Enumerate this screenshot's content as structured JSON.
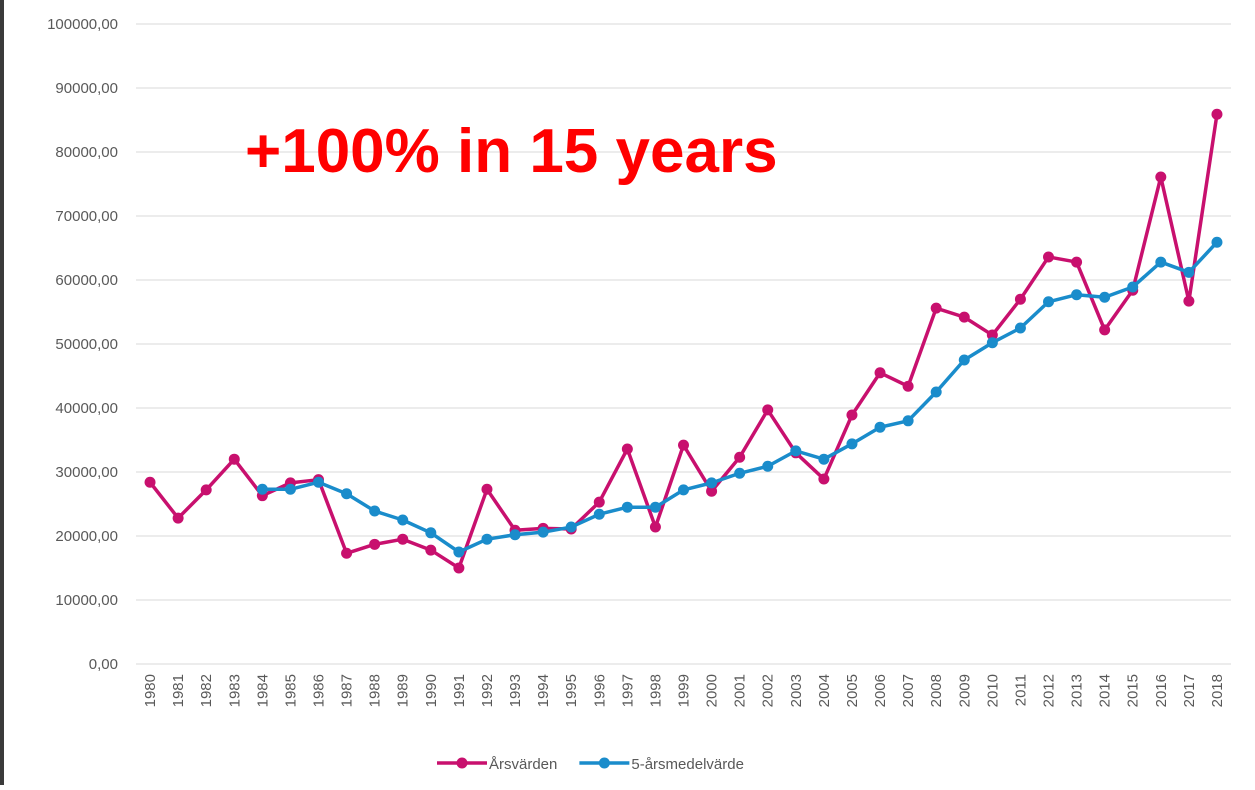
{
  "chart_data": {
    "type": "line",
    "annotation": "+100% in 15 years",
    "categories": [
      "1980",
      "1981",
      "1982",
      "1983",
      "1984",
      "1985",
      "1986",
      "1987",
      "1988",
      "1989",
      "1990",
      "1991",
      "1992",
      "1993",
      "1994",
      "1995",
      "1996",
      "1997",
      "1998",
      "1999",
      "2000",
      "2001",
      "2002",
      "2003",
      "2004",
      "2005",
      "2006",
      "2007",
      "2008",
      "2009",
      "2010",
      "2011",
      "2012",
      "2013",
      "2014",
      "2015",
      "2016",
      "2017",
      "2018"
    ],
    "series": [
      {
        "name": "Årsvärden",
        "color": "#c8106e",
        "values": [
          28400,
          22800,
          27200,
          32000,
          26300,
          28300,
          28800,
          17300,
          18700,
          19500,
          17800,
          15000,
          27300,
          20900,
          21200,
          21100,
          25300,
          33600,
          21400,
          34200,
          27000,
          32300,
          39700,
          33000,
          28900,
          38900,
          45500,
          43400,
          55600,
          54200,
          51400,
          57000,
          63600,
          62800,
          52200,
          58400,
          76100,
          56700,
          85900
        ]
      },
      {
        "name": "5-årsmedelvärde",
        "color": "#1a8ccb",
        "values": [
          null,
          null,
          null,
          null,
          27300,
          27300,
          28400,
          26600,
          23900,
          22500,
          20500,
          17500,
          19500,
          20200,
          20600,
          21400,
          23400,
          24500,
          24500,
          27200,
          28300,
          29800,
          30900,
          33300,
          32000,
          34400,
          37000,
          38000,
          42500,
          47500,
          50200,
          52500,
          56600,
          57700,
          57300,
          58900,
          62800,
          61200,
          65900
        ]
      }
    ],
    "ylim": [
      0,
      100000
    ],
    "yticks": [
      {
        "value": 0,
        "label": "0,00"
      },
      {
        "value": 10000,
        "label": "10000,00"
      },
      {
        "value": 20000,
        "label": "20000,00"
      },
      {
        "value": 30000,
        "label": "30000,00"
      },
      {
        "value": 40000,
        "label": "40000,00"
      },
      {
        "value": 50000,
        "label": "50000,00"
      },
      {
        "value": 60000,
        "label": "60000,00"
      },
      {
        "value": 70000,
        "label": "70000,00"
      },
      {
        "value": 80000,
        "label": "80000,00"
      },
      {
        "value": 90000,
        "label": "90000,00"
      },
      {
        "value": 100000,
        "label": "100000,00"
      }
    ],
    "grid": true,
    "legend": "bottom"
  }
}
